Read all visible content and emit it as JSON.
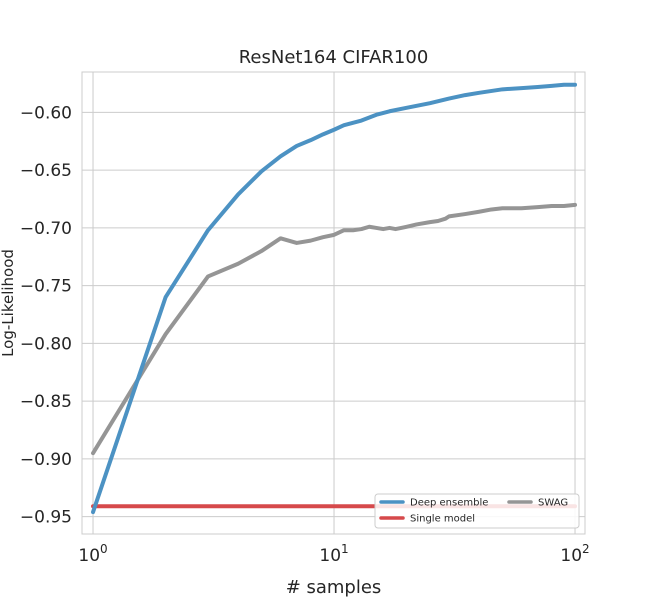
{
  "chart_data": {
    "type": "line",
    "title": "ResNet164 CIFAR100",
    "xlabel": "# samples",
    "ylabel": "Log-Likelihood",
    "xscale": "log",
    "xlim": [
      0.9,
      110
    ],
    "ylim": [
      -0.965,
      -0.565
    ],
    "grid": true,
    "legend": {
      "location": "lower-right",
      "columns": 2
    },
    "x_ticks": [
      {
        "value": 1,
        "base": "10",
        "exp": "0"
      },
      {
        "value": 10,
        "base": "10",
        "exp": "1"
      },
      {
        "value": 100,
        "base": "10",
        "exp": "2"
      }
    ],
    "y_ticks": [
      {
        "value": -0.6,
        "label": "−0.60"
      },
      {
        "value": -0.65,
        "label": "−0.65"
      },
      {
        "value": -0.7,
        "label": "−0.70"
      },
      {
        "value": -0.75,
        "label": "−0.75"
      },
      {
        "value": -0.8,
        "label": "−0.80"
      },
      {
        "value": -0.85,
        "label": "−0.85"
      },
      {
        "value": -0.9,
        "label": "−0.90"
      },
      {
        "value": -0.95,
        "label": "−0.95"
      }
    ],
    "series": [
      {
        "name": "Deep ensemble",
        "color": "#4c92c3",
        "points": [
          [
            1,
            -0.946
          ],
          [
            2,
            -0.76
          ],
          [
            3,
            -0.702
          ],
          [
            4,
            -0.671
          ],
          [
            5,
            -0.651
          ],
          [
            6,
            -0.638
          ],
          [
            7,
            -0.629
          ],
          [
            8,
            -0.624
          ],
          [
            9,
            -0.619
          ],
          [
            10,
            -0.615
          ],
          [
            11,
            -0.611
          ],
          [
            13,
            -0.607
          ],
          [
            15,
            -0.602
          ],
          [
            17,
            -0.599
          ],
          [
            20,
            -0.596
          ],
          [
            25,
            -0.592
          ],
          [
            30,
            -0.588
          ],
          [
            35,
            -0.585
          ],
          [
            40,
            -0.583
          ],
          [
            50,
            -0.58
          ],
          [
            60,
            -0.579
          ],
          [
            70,
            -0.578
          ],
          [
            80,
            -0.577
          ],
          [
            90,
            -0.576
          ],
          [
            100,
            -0.576
          ]
        ]
      },
      {
        "name": "Single model",
        "color": "#d6494b",
        "points": [
          [
            1,
            -0.941
          ],
          [
            100,
            -0.941
          ]
        ]
      },
      {
        "name": "SWAG",
        "color": "#959595",
        "points": [
          [
            1,
            -0.895
          ],
          [
            2,
            -0.792
          ],
          [
            3,
            -0.742
          ],
          [
            4,
            -0.731
          ],
          [
            5,
            -0.72
          ],
          [
            6,
            -0.709
          ],
          [
            7,
            -0.713
          ],
          [
            8,
            -0.711
          ],
          [
            9,
            -0.708
          ],
          [
            10,
            -0.706
          ],
          [
            11,
            -0.702
          ],
          [
            12,
            -0.702
          ],
          [
            13,
            -0.701
          ],
          [
            14,
            -0.699
          ],
          [
            15,
            -0.7
          ],
          [
            16,
            -0.701
          ],
          [
            17,
            -0.7
          ],
          [
            18,
            -0.701
          ],
          [
            19,
            -0.7
          ],
          [
            20,
            -0.699
          ],
          [
            22,
            -0.697
          ],
          [
            25,
            -0.695
          ],
          [
            27,
            -0.694
          ],
          [
            29,
            -0.692
          ],
          [
            30,
            -0.69
          ],
          [
            35,
            -0.688
          ],
          [
            40,
            -0.686
          ],
          [
            45,
            -0.684
          ],
          [
            50,
            -0.683
          ],
          [
            60,
            -0.683
          ],
          [
            70,
            -0.682
          ],
          [
            80,
            -0.681
          ],
          [
            90,
            -0.681
          ],
          [
            100,
            -0.68
          ]
        ]
      }
    ]
  }
}
